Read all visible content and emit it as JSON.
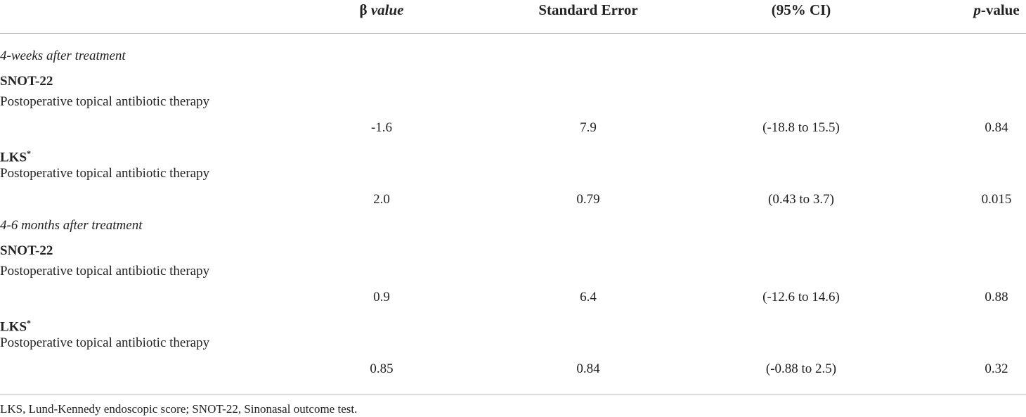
{
  "table": {
    "header": {
      "beta": {
        "symbol": "β",
        "word": "value"
      },
      "se": "Standard Error",
      "ci": "(95% CI)",
      "p": {
        "symbol": "p",
        "word": "-value"
      }
    },
    "sections": [
      {
        "title": "4-weeks after treatment",
        "groups": [
          {
            "outcome": "SNOT-22",
            "predictor": "Postoperative topical antibiotic therapy",
            "beta": "-1.6",
            "se": "7.9",
            "ci": "(-18.8 to 15.5)",
            "p": "0.84"
          },
          {
            "outcome": "LKS",
            "outcome_mark": "*",
            "predictor": "Postoperative topical antibiotic therapy",
            "beta": "2.0",
            "se": "0.79",
            "ci": "(0.43 to 3.7)",
            "p": "0.015"
          }
        ]
      },
      {
        "title": "4-6 months after treatment",
        "groups": [
          {
            "outcome": "SNOT-22",
            "predictor": "Postoperative topical antibiotic therapy",
            "beta": "0.9",
            "se": "6.4",
            "ci": "(-12.6 to 14.6)",
            "p": "0.88"
          },
          {
            "outcome": "LKS",
            "outcome_mark": "*",
            "predictor": "Postoperative topical antibiotic therapy",
            "beta": "0.85",
            "se": "0.84",
            "ci": "(-0.88 to 2.5)",
            "p": "0.32"
          }
        ]
      }
    ],
    "footnote": "LKS, Lund-Kennedy endoscopic score; SNOT-22, Sinonasal outcome test."
  }
}
